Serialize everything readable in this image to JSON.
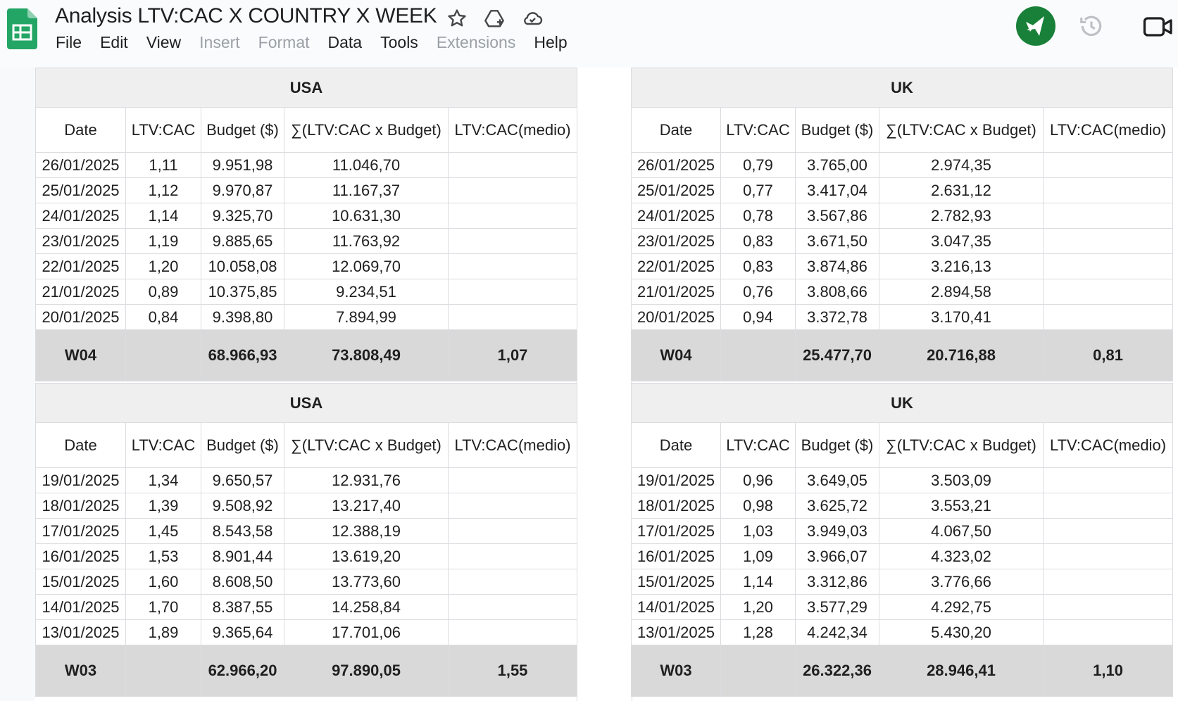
{
  "app": {
    "title": "Analysis LTV:CAC X COUNTRY X WEEK",
    "menu": [
      {
        "label": "File",
        "enabled": true
      },
      {
        "label": "Edit",
        "enabled": true
      },
      {
        "label": "View",
        "enabled": true
      },
      {
        "label": "Insert",
        "enabled": false
      },
      {
        "label": "Format",
        "enabled": false
      },
      {
        "label": "Data",
        "enabled": true
      },
      {
        "label": "Tools",
        "enabled": true
      },
      {
        "label": "Extensions",
        "enabled": false
      },
      {
        "label": "Help",
        "enabled": true
      }
    ],
    "icons": {
      "logo": "google-sheets-icon",
      "star": "star-icon",
      "move": "move-to-drive-icon",
      "cloud": "cloud-saved-icon",
      "gemini": "gemini-icon",
      "history": "history-icon",
      "meet": "meet-icon"
    },
    "colors": {
      "good": "#73b888",
      "bad": "#e6ada5",
      "total_bg": "#d9d9d9",
      "title_bg": "#efefef",
      "gemini": "#188038"
    }
  },
  "blocks": [
    {
      "country": "USA",
      "headers": [
        "Date",
        "LTV:CAC",
        "Budget ($)",
        "∑(LTV:CAC x Budget)",
        "LTV:CAC(medio)"
      ],
      "rows": [
        [
          "26/01/2025",
          "1,11",
          "9.951,98",
          "11.046,70",
          ""
        ],
        [
          "25/01/2025",
          "1,12",
          "9.970,87",
          "11.167,37",
          ""
        ],
        [
          "24/01/2025",
          "1,14",
          "9.325,70",
          "10.631,30",
          ""
        ],
        [
          "23/01/2025",
          "1,19",
          "9.885,65",
          "11.763,92",
          ""
        ],
        [
          "22/01/2025",
          "1,20",
          "10.058,08",
          "12.069,70",
          ""
        ],
        [
          "21/01/2025",
          "0,89",
          "10.375,85",
          "9.234,51",
          ""
        ],
        [
          "20/01/2025",
          "0,84",
          "9.398,80",
          "7.894,99",
          ""
        ]
      ],
      "total": {
        "week": "W04",
        "budget": "68.966,93",
        "sum": "73.808,49",
        "avg": "1,07",
        "status": "good"
      }
    },
    {
      "country": "UK",
      "headers": [
        "Date",
        "LTV:CAC",
        "Budget ($)",
        "∑(LTV:CAC x Budget)",
        "LTV:CAC(medio)"
      ],
      "rows": [
        [
          "26/01/2025",
          "0,79",
          "3.765,00",
          "2.974,35",
          ""
        ],
        [
          "25/01/2025",
          "0,77",
          "3.417,04",
          "2.631,12",
          ""
        ],
        [
          "24/01/2025",
          "0,78",
          "3.567,86",
          "2.782,93",
          ""
        ],
        [
          "23/01/2025",
          "0,83",
          "3.671,50",
          "3.047,35",
          ""
        ],
        [
          "22/01/2025",
          "0,83",
          "3.874,86",
          "3.216,13",
          ""
        ],
        [
          "21/01/2025",
          "0,76",
          "3.808,66",
          "2.894,58",
          ""
        ],
        [
          "20/01/2025",
          "0,94",
          "3.372,78",
          "3.170,41",
          ""
        ]
      ],
      "total": {
        "week": "W04",
        "budget": "25.477,70",
        "sum": "20.716,88",
        "avg": "0,81",
        "status": "bad"
      }
    },
    {
      "country": "USA",
      "headers": [
        "Date",
        "LTV:CAC",
        "Budget ($)",
        "∑(LTV:CAC x Budget)",
        "LTV:CAC(medio)"
      ],
      "rows": [
        [
          "19/01/2025",
          "1,34",
          "9.650,57",
          "12.931,76",
          ""
        ],
        [
          "18/01/2025",
          "1,39",
          "9.508,92",
          "13.217,40",
          ""
        ],
        [
          "17/01/2025",
          "1,45",
          "8.543,58",
          "12.388,19",
          ""
        ],
        [
          "16/01/2025",
          "1,53",
          "8.901,44",
          "13.619,20",
          ""
        ],
        [
          "15/01/2025",
          "1,60",
          "8.608,50",
          "13.773,60",
          ""
        ],
        [
          "14/01/2025",
          "1,70",
          "8.387,55",
          "14.258,84",
          ""
        ],
        [
          "13/01/2025",
          "1,89",
          "9.365,64",
          "17.701,06",
          ""
        ]
      ],
      "total": {
        "week": "W03",
        "budget": "62.966,20",
        "sum": "97.890,05",
        "avg": "1,55",
        "status": "good"
      }
    },
    {
      "country": "UK",
      "headers": [
        "Date",
        "LTV:CAC",
        "Budget ($)",
        "∑(LTV:CAC x Budget)",
        "LTV:CAC(medio)"
      ],
      "rows": [
        [
          "19/01/2025",
          "0,96",
          "3.649,05",
          "3.503,09",
          ""
        ],
        [
          "18/01/2025",
          "0,98",
          "3.625,72",
          "3.553,21",
          ""
        ],
        [
          "17/01/2025",
          "1,03",
          "3.949,03",
          "4.067,50",
          ""
        ],
        [
          "16/01/2025",
          "1,09",
          "3.966,07",
          "4.323,02",
          ""
        ],
        [
          "15/01/2025",
          "1,14",
          "3.312,86",
          "3.776,66",
          ""
        ],
        [
          "14/01/2025",
          "1,20",
          "3.577,29",
          "4.292,75",
          ""
        ],
        [
          "13/01/2025",
          "1,28",
          "4.242,34",
          "5.430,20",
          ""
        ]
      ],
      "total": {
        "week": "W03",
        "budget": "26.322,36",
        "sum": "28.946,41",
        "avg": "1,10",
        "status": "good"
      }
    }
  ]
}
